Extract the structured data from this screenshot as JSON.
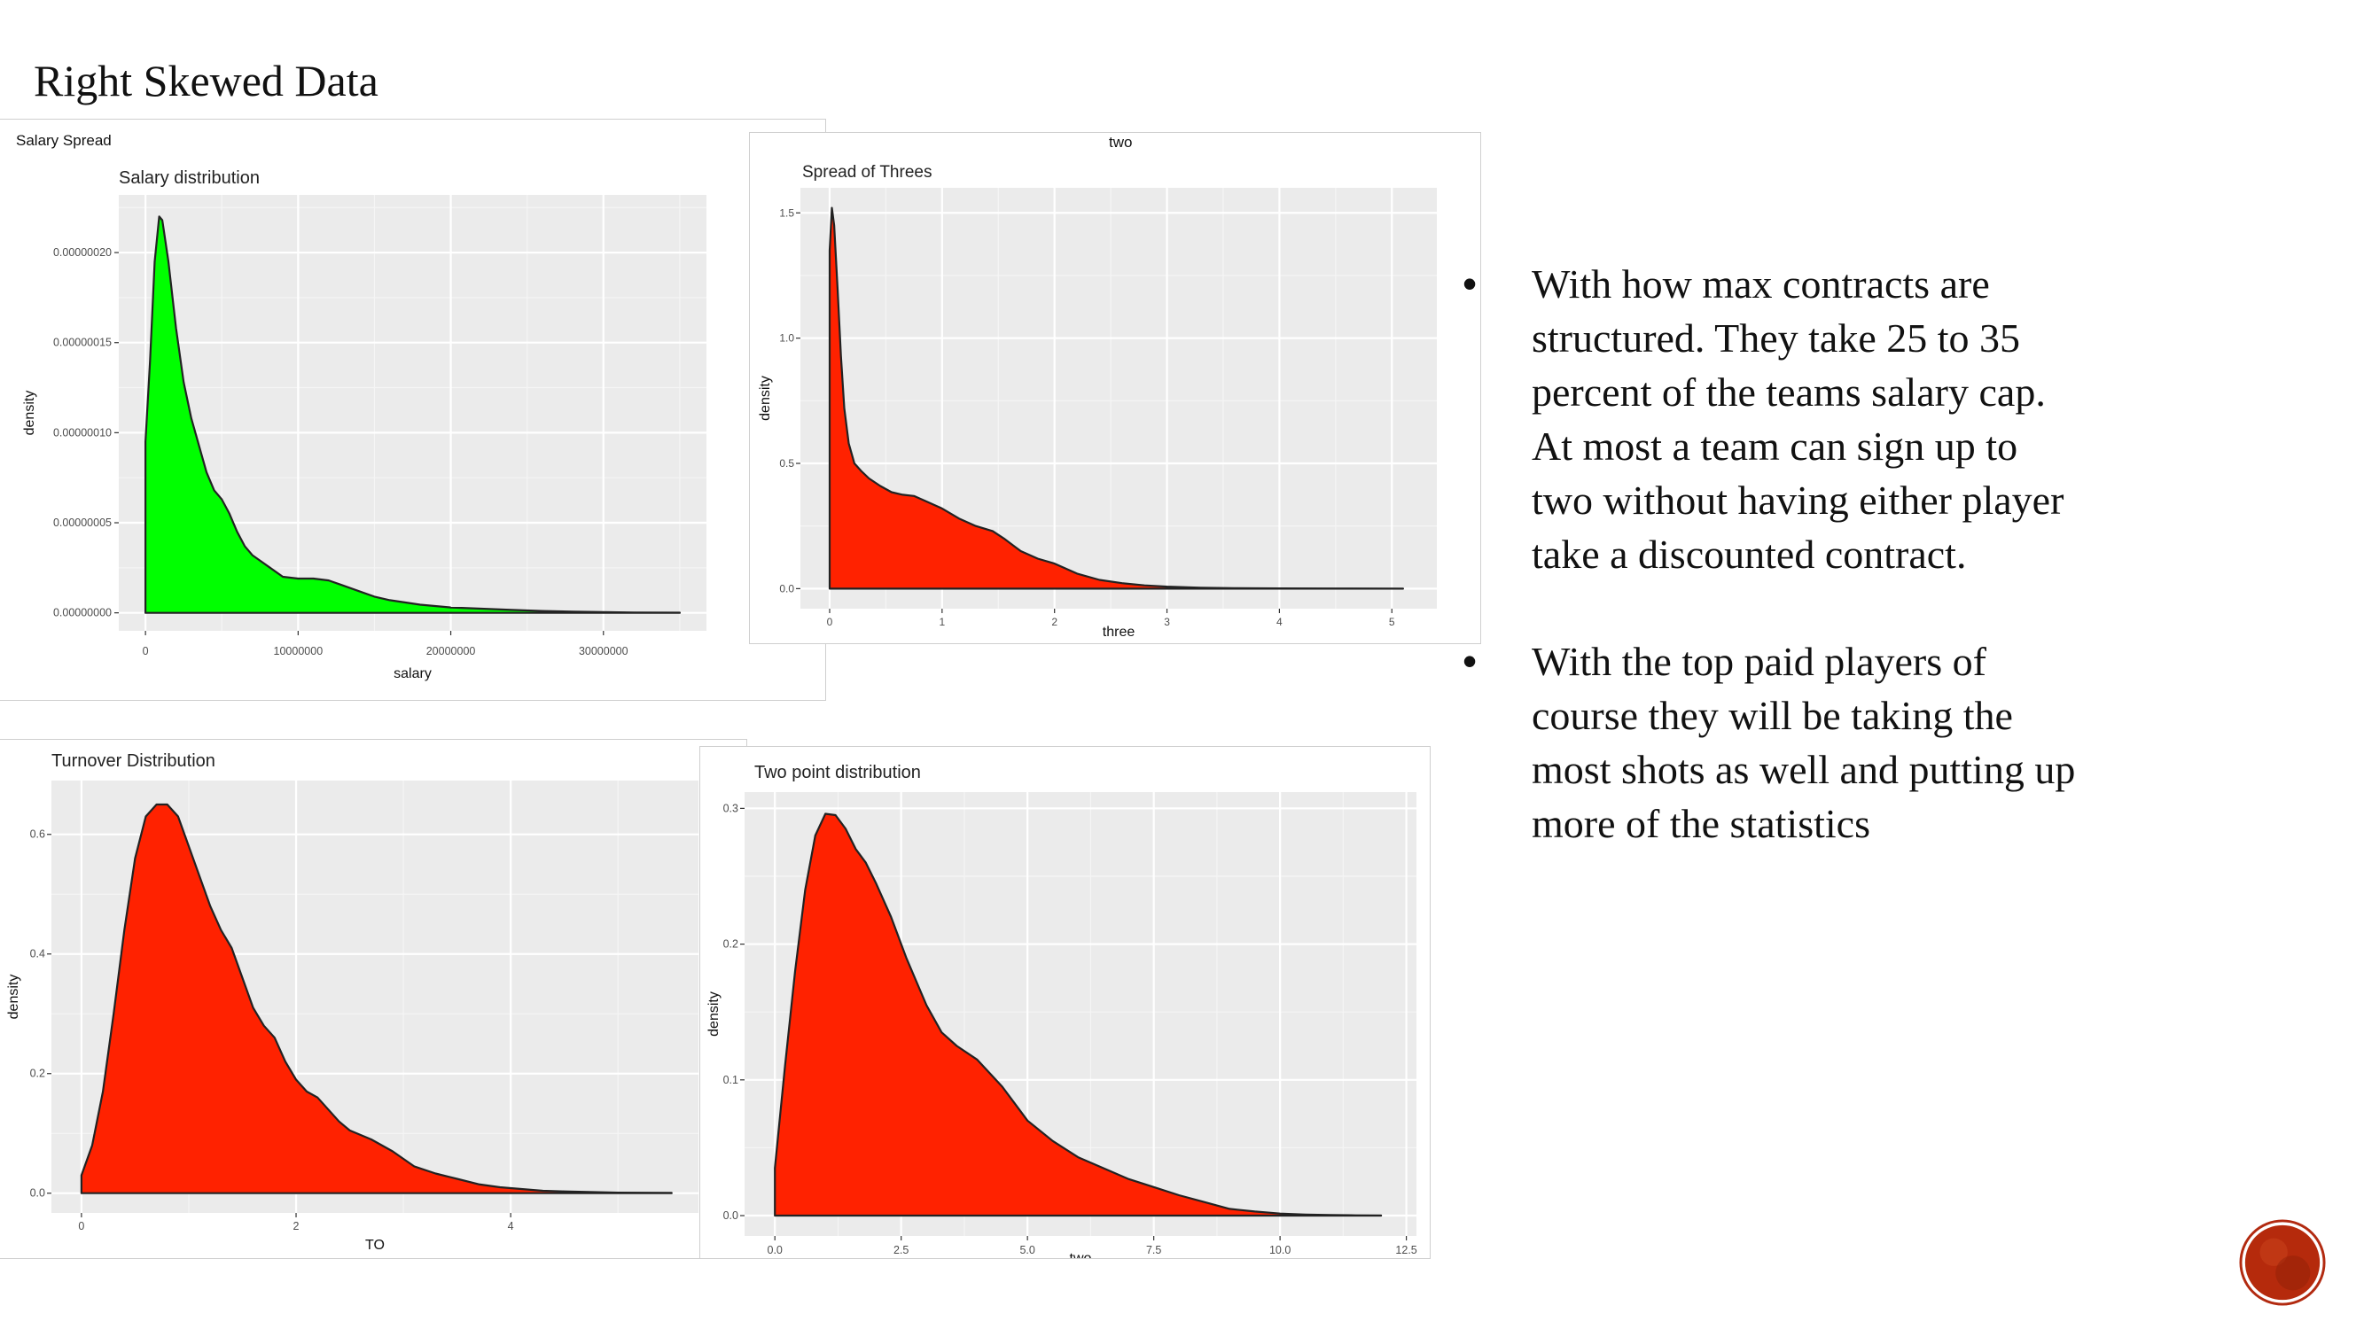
{
  "slide": {
    "title": "Right Skewed Data",
    "bullets": [
      "With how max contracts are structured.  They take 25 to 35 percent of the teams salary cap.  At most a team can sign up to two without having either player take a discounted contract.",
      "With the top paid players of course they will be taking the most shots as well and putting up more of the statistics"
    ],
    "bullet_glyph": "•",
    "logo_icon": "circular-logo-icon"
  },
  "chart_data": [
    {
      "type": "area",
      "window_caption": "Salary Spread",
      "title": "Salary distribution",
      "xlabel": "salary",
      "ylabel": "density",
      "fill": "#00ff00",
      "grid": true,
      "xlim": [
        -1750000,
        36750000
      ],
      "ylim": [
        -1e-08,
        2.32e-07
      ],
      "xticks": [
        0,
        10000000,
        20000000,
        30000000
      ],
      "xtick_labels": [
        "0",
        "10000000",
        "20000000",
        "30000000"
      ],
      "yticks": [
        0,
        5e-08,
        1e-07,
        1.5e-07,
        2e-07
      ],
      "ytick_labels": [
        "0.00000000",
        "0.00000005",
        "0.00000010",
        "0.00000015",
        "0.00000020"
      ],
      "x": [
        0,
        0,
        300000,
        600000,
        900000,
        1100000,
        1500000,
        2000000,
        2500000,
        3000000,
        3500000,
        4000000,
        4500000,
        5000000,
        5500000,
        6000000,
        6500000,
        7000000,
        8000000,
        9000000,
        10000000,
        11000000,
        12000000,
        13000000,
        14000000,
        15000000,
        16000000,
        18000000,
        20000000,
        22000000,
        24000000,
        26000000,
        28000000,
        30000000,
        32000000,
        35000000
      ],
      "y": [
        0,
        9.5e-08,
        1.4e-07,
        1.95e-07,
        2.2e-07,
        2.18e-07,
        1.95e-07,
        1.58e-07,
        1.28e-07,
        1.08e-07,
        9.3e-08,
        7.8e-08,
        6.8e-08,
        6.3e-08,
        5.5e-08,
        4.5e-08,
        3.7e-08,
        3.2e-08,
        2.6e-08,
        2e-08,
        1.9e-08,
        1.9e-08,
        1.8e-08,
        1.5e-08,
        1.2e-08,
        9e-09,
        7e-09,
        4.5e-09,
        3e-09,
        2.3e-09,
        1.6e-09,
        1e-09,
        6e-10,
        4e-10,
        2e-10,
        1e-10
      ]
    },
    {
      "type": "area",
      "window_caption": "two",
      "title": "Spread of Threes",
      "xlabel": "three",
      "ylabel": "density",
      "fill": "#ff2200",
      "grid": true,
      "xlim": [
        -0.26,
        5.4
      ],
      "ylim": [
        -0.08,
        1.6
      ],
      "xticks": [
        0,
        1,
        2,
        3,
        4,
        5
      ],
      "xtick_labels": [
        "0",
        "1",
        "2",
        "3",
        "4",
        "5"
      ],
      "yticks": [
        0,
        0.5,
        1.0,
        1.5
      ],
      "ytick_labels": [
        "0.0",
        "0.5",
        "1.0",
        "1.5"
      ],
      "x": [
        0,
        0,
        0.02,
        0.04,
        0.07,
        0.1,
        0.13,
        0.17,
        0.22,
        0.28,
        0.35,
        0.45,
        0.55,
        0.65,
        0.75,
        0.85,
        1.0,
        1.15,
        1.3,
        1.45,
        1.55,
        1.7,
        1.85,
        2.0,
        2.2,
        2.4,
        2.6,
        2.8,
        3.0,
        3.3,
        3.6,
        4.0,
        4.5,
        5.1
      ],
      "y": [
        0,
        1.35,
        1.52,
        1.45,
        1.2,
        0.93,
        0.72,
        0.58,
        0.5,
        0.47,
        0.44,
        0.41,
        0.385,
        0.375,
        0.37,
        0.35,
        0.32,
        0.28,
        0.25,
        0.23,
        0.2,
        0.15,
        0.12,
        0.1,
        0.06,
        0.035,
        0.022,
        0.013,
        0.008,
        0.004,
        0.002,
        0.001,
        0.0005,
        0.0002
      ]
    },
    {
      "type": "area",
      "title": "Turnover Distribution",
      "xlabel": "TO",
      "ylabel": "density",
      "fill": "#ff2200",
      "grid": true,
      "xlim": [
        -0.28,
        5.75
      ],
      "ylim": [
        -0.033,
        0.69
      ],
      "xticks": [
        0,
        2,
        4
      ],
      "xtick_labels": [
        "0",
        "2",
        "4"
      ],
      "yticks": [
        0,
        0.2,
        0.4,
        0.6
      ],
      "ytick_labels": [
        "0.0",
        "0.2",
        "0.4",
        "0.6"
      ],
      "x": [
        0,
        0,
        0.1,
        0.2,
        0.3,
        0.4,
        0.5,
        0.6,
        0.7,
        0.8,
        0.9,
        1.0,
        1.1,
        1.2,
        1.3,
        1.4,
        1.5,
        1.6,
        1.7,
        1.8,
        1.9,
        2.0,
        2.1,
        2.2,
        2.3,
        2.4,
        2.5,
        2.7,
        2.9,
        3.1,
        3.3,
        3.5,
        3.7,
        3.9,
        4.1,
        4.3,
        4.5,
        5.0,
        5.5
      ],
      "y": [
        0,
        0.03,
        0.08,
        0.17,
        0.3,
        0.44,
        0.56,
        0.63,
        0.65,
        0.65,
        0.63,
        0.58,
        0.53,
        0.48,
        0.44,
        0.41,
        0.36,
        0.31,
        0.28,
        0.26,
        0.22,
        0.19,
        0.17,
        0.16,
        0.14,
        0.12,
        0.105,
        0.09,
        0.07,
        0.045,
        0.033,
        0.024,
        0.015,
        0.01,
        0.007,
        0.004,
        0.003,
        0.001,
        0.0005
      ]
    },
    {
      "type": "area",
      "title": "Two point distribution",
      "xlabel": "two",
      "ylabel": "density",
      "fill": "#ff2200",
      "grid": true,
      "xlim": [
        -0.6,
        12.7
      ],
      "ylim": [
        -0.015,
        0.312
      ],
      "xticks": [
        0.0,
        2.5,
        5.0,
        7.5,
        10.0,
        12.5
      ],
      "xtick_labels": [
        "0.0",
        "2.5",
        "5.0",
        "7.5",
        "10.0",
        "12.5"
      ],
      "yticks": [
        0.0,
        0.1,
        0.2,
        0.3
      ],
      "ytick_labels": [
        "0.0",
        "0.1",
        "0.2",
        "0.3"
      ],
      "x": [
        0,
        0,
        0.2,
        0.4,
        0.6,
        0.8,
        1.0,
        1.2,
        1.4,
        1.6,
        1.8,
        2.0,
        2.3,
        2.6,
        3.0,
        3.3,
        3.6,
        4.0,
        4.5,
        5.0,
        5.5,
        6.0,
        6.5,
        7.0,
        7.5,
        8.0,
        8.5,
        9.0,
        9.5,
        10.0,
        10.5,
        11.0,
        11.5,
        12.0
      ],
      "y": [
        0,
        0.035,
        0.11,
        0.18,
        0.24,
        0.28,
        0.296,
        0.295,
        0.285,
        0.27,
        0.26,
        0.245,
        0.22,
        0.19,
        0.155,
        0.135,
        0.125,
        0.115,
        0.095,
        0.07,
        0.055,
        0.043,
        0.035,
        0.027,
        0.021,
        0.015,
        0.01,
        0.005,
        0.003,
        0.0015,
        0.0008,
        0.0004,
        0.0002,
        0.0001
      ]
    }
  ]
}
